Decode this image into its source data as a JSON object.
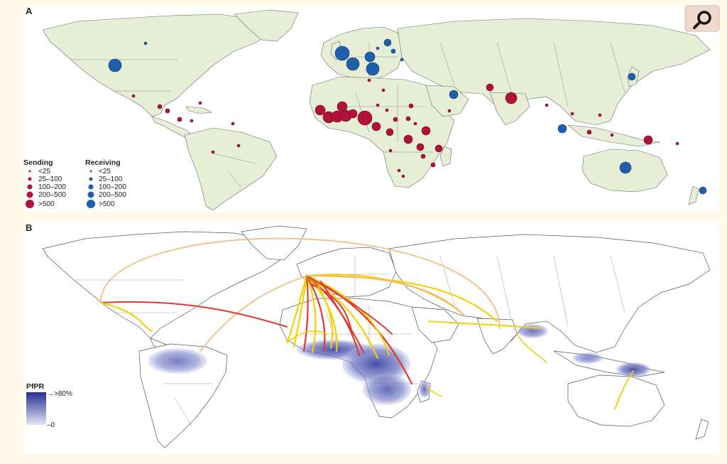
{
  "panels": {
    "a_label": "A",
    "b_label": "B"
  },
  "zoom_icon": "magnifier-icon",
  "legend_a": {
    "sending_title": "Sending",
    "receiving_title": "Receiving",
    "classes": [
      "<25",
      "25–100",
      "100–200",
      "200–500",
      ">500"
    ]
  },
  "legend_b": {
    "title": "PfPR",
    "max_label": "→>80%",
    "min_label": "–0"
  },
  "colors": {
    "sending": "#b0123a",
    "receiving": "#1f5ea8",
    "land_a": "#e6eed6",
    "ocean": "#ffffff",
    "route_high": "#e0392f",
    "route_mid": "#f3b97a",
    "route_low": "#f5d000",
    "pfpr_high": "#232f8f",
    "pfpr_low": "#d6d9f0"
  }
}
